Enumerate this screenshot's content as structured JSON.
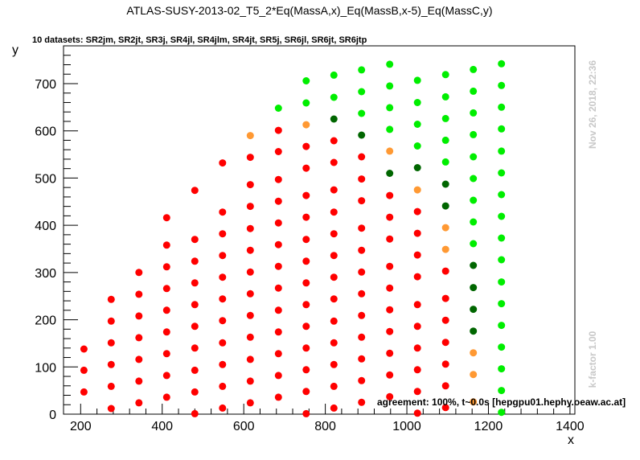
{
  "title": "ATLAS-SUSY-2013-02_T5_2*Eq(MassA,x)_Eq(MassB,x-5)_Eq(MassC,y)",
  "subtitle": "10 datasets: SR2jm, SR2jt, SR3j, SR4jl, SR4jlm, SR4jt, SR5j, SR6jl, SR6jt, SR6jtp",
  "date_label": "Nov 26, 2018, 22:36",
  "kfactor_label": "k-factor 1.00",
  "footer": "agreement: 100%, t~0.0s [hepgpu01.hephy.oeaw.ac.at]",
  "colors": {
    "excluded": "#ff0000",
    "excluded_one": "#ff9933",
    "allowed_one": "#006600",
    "allowed": "#00ee00"
  },
  "chart_data": {
    "type": "scatter",
    "xlabel": "x",
    "ylabel": "y",
    "xlim": [
      158,
      1412
    ],
    "ylim": [
      0,
      780
    ],
    "xticks": [
      200,
      400,
      600,
      800,
      1000,
      1200,
      1400
    ],
    "yticks": [
      0,
      100,
      200,
      300,
      400,
      500,
      600,
      700
    ],
    "grid": false,
    "columns": [
      {
        "x": 208,
        "y": [
          47,
          93,
          138
        ],
        "colors": [
          "r",
          "r",
          "r"
        ]
      },
      {
        "x": 275,
        "y": [
          12,
          59,
          105,
          151,
          197,
          243
        ],
        "colors": [
          "r",
          "r",
          "r",
          "r",
          "r",
          "r"
        ]
      },
      {
        "x": 343,
        "y": [
          24,
          70,
          116,
          162,
          208,
          254,
          300
        ],
        "colors": [
          "r",
          "r",
          "r",
          "r",
          "r",
          "r",
          "r"
        ]
      },
      {
        "x": 411,
        "y": [
          36,
          82,
          128,
          174,
          220,
          266,
          312,
          358,
          416
        ],
        "colors": [
          "r",
          "r",
          "r",
          "r",
          "r",
          "r",
          "r",
          "r",
          "r"
        ]
      },
      {
        "x": 480,
        "y": [
          1,
          47,
          93,
          140,
          186,
          232,
          278,
          324,
          370,
          474
        ],
        "colors": [
          "r",
          "r",
          "r",
          "r",
          "r",
          "r",
          "r",
          "r",
          "r",
          "r"
        ]
      },
      {
        "x": 548,
        "y": [
          13,
          59,
          105,
          151,
          198,
          244,
          290,
          336,
          382,
          428,
          532
        ],
        "colors": [
          "r",
          "r",
          "r",
          "r",
          "r",
          "r",
          "r",
          "r",
          "r",
          "r",
          "r"
        ]
      },
      {
        "x": 616,
        "y": [
          24,
          70,
          116,
          163,
          209,
          255,
          301,
          347,
          393,
          440,
          486,
          544,
          590
        ],
        "colors": [
          "r",
          "r",
          "r",
          "r",
          "r",
          "r",
          "r",
          "r",
          "r",
          "r",
          "r",
          "r",
          "o"
        ]
      },
      {
        "x": 685,
        "y": [
          36,
          82,
          128,
          174,
          220,
          267,
          313,
          359,
          405,
          451,
          497,
          556,
          601,
          648
        ],
        "colors": [
          "r",
          "r",
          "r",
          "r",
          "r",
          "r",
          "r",
          "r",
          "r",
          "r",
          "r",
          "r",
          "r",
          "G"
        ]
      },
      {
        "x": 753,
        "y": [
          1,
          48,
          94,
          140,
          186,
          232,
          278,
          324,
          370,
          417,
          463,
          521,
          567,
          613,
          659,
          706
        ],
        "colors": [
          "r",
          "r",
          "r",
          "r",
          "r",
          "r",
          "r",
          "r",
          "r",
          "r",
          "r",
          "r",
          "r",
          "o",
          "G",
          "G"
        ]
      },
      {
        "x": 821,
        "y": [
          13,
          59,
          105,
          151,
          197,
          244,
          290,
          336,
          382,
          428,
          475,
          533,
          579,
          625,
          671,
          718
        ],
        "colors": [
          "r",
          "r",
          "r",
          "r",
          "r",
          "r",
          "r",
          "r",
          "r",
          "r",
          "r",
          "r",
          "r",
          "g",
          "G",
          "G"
        ]
      },
      {
        "x": 889,
        "y": [
          25,
          71,
          117,
          163,
          209,
          255,
          301,
          347,
          394,
          452,
          498,
          545,
          591,
          637,
          683,
          729
        ],
        "colors": [
          "r",
          "r",
          "r",
          "r",
          "r",
          "r",
          "r",
          "r",
          "r",
          "r",
          "r",
          "r",
          "g",
          "G",
          "G",
          "G"
        ]
      },
      {
        "x": 958,
        "y": [
          37,
          83,
          129,
          175,
          221,
          267,
          313,
          371,
          417,
          463,
          510,
          557,
          603,
          649,
          695,
          741
        ],
        "colors": [
          "r",
          "r",
          "r",
          "r",
          "r",
          "r",
          "r",
          "r",
          "r",
          "r",
          "g",
          "o",
          "G",
          "G",
          "G",
          "G"
        ]
      },
      {
        "x": 1026,
        "y": [
          2,
          48,
          94,
          140,
          186,
          232,
          291,
          337,
          383,
          429,
          475,
          522,
          568,
          614,
          660,
          707
        ],
        "colors": [
          "r",
          "r",
          "r",
          "r",
          "r",
          "r",
          "r",
          "r",
          "r",
          "r",
          "o",
          "g",
          "G",
          "G",
          "G",
          "G"
        ]
      },
      {
        "x": 1095,
        "y": [
          14,
          60,
          106,
          152,
          199,
          245,
          303,
          349,
          395,
          441,
          487,
          534,
          580,
          626,
          672,
          719
        ],
        "colors": [
          "r",
          "r",
          "r",
          "r",
          "r",
          "r",
          "r",
          "o",
          "o",
          "g",
          "g",
          "G",
          "G",
          "G",
          "G",
          "G"
        ]
      },
      {
        "x": 1163,
        "y": [
          26,
          84,
          130,
          176,
          222,
          268,
          315,
          361,
          407,
          453,
          499,
          545,
          592,
          638,
          684,
          730
        ],
        "colors": [
          "o",
          "o",
          "o",
          "g",
          "g",
          "g",
          "g",
          "G",
          "G",
          "G",
          "G",
          "G",
          "G",
          "G",
          "G",
          "G"
        ]
      },
      {
        "x": 1232,
        "y": [
          4,
          50,
          96,
          142,
          188,
          234,
          280,
          327,
          373,
          419,
          465,
          511,
          557,
          604,
          650,
          696,
          742
        ],
        "colors": [
          "G",
          "G",
          "G",
          "G",
          "G",
          "G",
          "G",
          "G",
          "G",
          "G",
          "G",
          "G",
          "G",
          "G",
          "G",
          "G",
          "G"
        ]
      }
    ]
  }
}
